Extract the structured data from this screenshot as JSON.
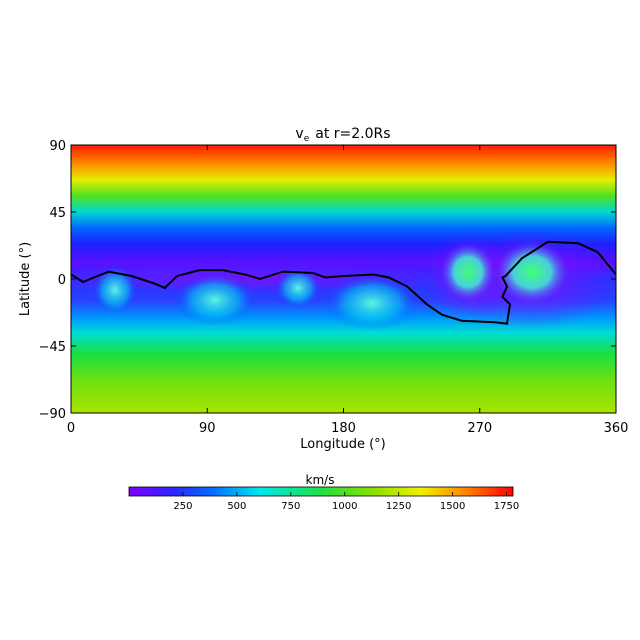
{
  "chart_data": {
    "type": "heatmap",
    "title_main": "v",
    "title_sub": "e",
    "title_rest": "at r=2.0Rs",
    "xlabel": "Longitude (°)",
    "ylabel": "Latitude (°)",
    "xlim": [
      0,
      360
    ],
    "ylim": [
      -90,
      90
    ],
    "x_ticks": [
      0,
      90,
      180,
      270,
      360
    ],
    "x_tick_labels": [
      "0",
      "90",
      "180",
      "270",
      "360"
    ],
    "y_ticks": [
      90,
      45,
      0,
      -45,
      -90
    ],
    "y_tick_labels": [
      "90",
      "45",
      "0",
      "−45",
      "−90"
    ],
    "colorbar": {
      "title": "km/s",
      "range": [
        0,
        1780
      ],
      "ticks": [
        250,
        500,
        750,
        1000,
        1250,
        1500,
        1750
      ],
      "tick_labels": [
        "250",
        "500",
        "750",
        "1000",
        "1250",
        "1500",
        "1750"
      ]
    },
    "neutral_line": [
      [
        0,
        3
      ],
      [
        8,
        -2
      ],
      [
        15,
        1
      ],
      [
        25,
        5
      ],
      [
        40,
        2
      ],
      [
        55,
        -3
      ],
      [
        62,
        -6
      ],
      [
        70,
        2
      ],
      [
        85,
        6
      ],
      [
        100,
        6
      ],
      [
        115,
        3
      ],
      [
        125,
        0
      ],
      [
        140,
        5
      ],
      [
        160,
        4
      ],
      [
        168,
        1
      ],
      [
        180,
        2
      ],
      [
        200,
        3
      ],
      [
        210,
        1
      ],
      [
        222,
        -5
      ],
      [
        235,
        -17
      ],
      [
        245,
        -24
      ],
      [
        258,
        -28
      ],
      [
        280,
        -29
      ],
      [
        288,
        -30
      ],
      [
        290,
        -17
      ],
      [
        285,
        -12
      ],
      [
        288,
        -5
      ],
      [
        285,
        1
      ],
      [
        287,
        2
      ],
      [
        298,
        14
      ],
      [
        315,
        25
      ],
      [
        335,
        24
      ],
      [
        348,
        18
      ],
      [
        360,
        3
      ]
    ]
  }
}
